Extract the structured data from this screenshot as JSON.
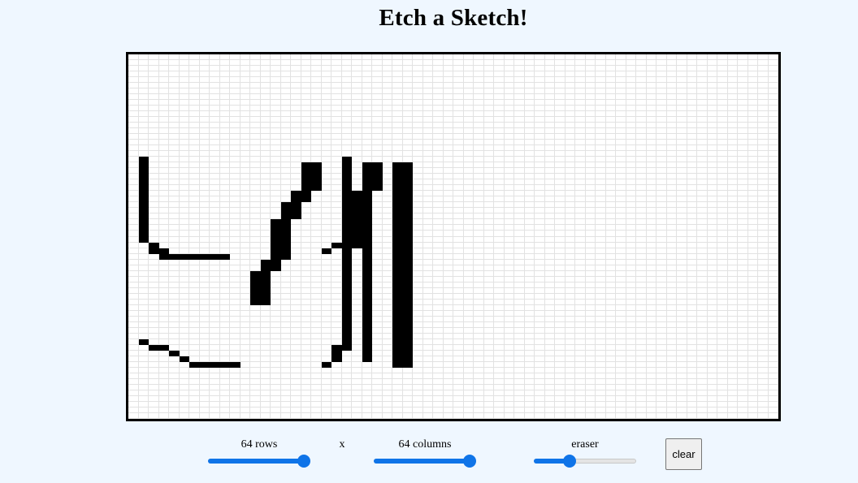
{
  "page": {
    "title": "Etch a Sketch!",
    "background_color": "#eff7ff"
  },
  "grid": {
    "rows": 64,
    "columns": 64,
    "cell_color_filled": "#000000",
    "cell_color_empty": "#ffffff",
    "gridline_color": "#e2e2e2",
    "drawing_text": "YAHYA",
    "filled_cells": [
      [
        18,
        1
      ],
      [
        18,
        21
      ],
      [
        19,
        1
      ],
      [
        19,
        21
      ],
      [
        20,
        1
      ],
      [
        20,
        21
      ],
      [
        21,
        1
      ],
      [
        21,
        21
      ],
      [
        22,
        1
      ],
      [
        22,
        21
      ],
      [
        23,
        1
      ],
      [
        23,
        21
      ],
      [
        24,
        1
      ],
      [
        24,
        21
      ],
      [
        25,
        1
      ],
      [
        25,
        21
      ],
      [
        26,
        1
      ],
      [
        26,
        21
      ],
      [
        27,
        1
      ],
      [
        27,
        21
      ],
      [
        28,
        1
      ],
      [
        28,
        21
      ],
      [
        29,
        1
      ],
      [
        29,
        21
      ],
      [
        30,
        1
      ],
      [
        30,
        21
      ],
      [
        31,
        1
      ],
      [
        31,
        21
      ],
      [
        32,
        1
      ],
      [
        32,
        21
      ],
      [
        33,
        2
      ],
      [
        33,
        20
      ],
      [
        33,
        21
      ],
      [
        34,
        2
      ],
      [
        34,
        3
      ],
      [
        34,
        19
      ],
      [
        34,
        21
      ],
      [
        35,
        3
      ],
      [
        35,
        4
      ],
      [
        35,
        5
      ],
      [
        35,
        6
      ],
      [
        35,
        7
      ],
      [
        35,
        8
      ],
      [
        35,
        9
      ],
      [
        35,
        21
      ],
      [
        36,
        21
      ],
      [
        37,
        21
      ],
      [
        38,
        21
      ],
      [
        39,
        21
      ],
      [
        40,
        21
      ],
      [
        41,
        21
      ],
      [
        42,
        21
      ],
      [
        43,
        21
      ],
      [
        44,
        21
      ],
      [
        45,
        21
      ],
      [
        46,
        21
      ],
      [
        47,
        21
      ],
      [
        48,
        21
      ],
      [
        49,
        21
      ],
      [
        50,
        1
      ],
      [
        50,
        21
      ],
      [
        51,
        2
      ],
      [
        51,
        3
      ],
      [
        51,
        20
      ],
      [
        51,
        21
      ],
      [
        52,
        4
      ],
      [
        52,
        20
      ],
      [
        53,
        5
      ],
      [
        53,
        20
      ],
      [
        54,
        6
      ],
      [
        54,
        7
      ],
      [
        54,
        8
      ],
      [
        54,
        9
      ],
      [
        54,
        10
      ],
      [
        54,
        19
      ],
      [
        19,
        17
      ],
      [
        19,
        18
      ],
      [
        20,
        17
      ],
      [
        20,
        18
      ],
      [
        21,
        17
      ],
      [
        21,
        18
      ],
      [
        22,
        17
      ],
      [
        22,
        18
      ],
      [
        23,
        17
      ],
      [
        23,
        18
      ],
      [
        24,
        16
      ],
      [
        24,
        17
      ],
      [
        25,
        16
      ],
      [
        25,
        17
      ],
      [
        26,
        15
      ],
      [
        26,
        16
      ],
      [
        27,
        15
      ],
      [
        27,
        16
      ],
      [
        28,
        15
      ],
      [
        28,
        16
      ],
      [
        29,
        14
      ],
      [
        29,
        15
      ],
      [
        30,
        14
      ],
      [
        30,
        15
      ],
      [
        31,
        14
      ],
      [
        31,
        15
      ],
      [
        32,
        14
      ],
      [
        32,
        15
      ],
      [
        33,
        14
      ],
      [
        33,
        15
      ],
      [
        34,
        14
      ],
      [
        34,
        15
      ],
      [
        35,
        14
      ],
      [
        35,
        15
      ],
      [
        36,
        13
      ],
      [
        36,
        14
      ],
      [
        37,
        13
      ],
      [
        37,
        14
      ],
      [
        38,
        12
      ],
      [
        38,
        13
      ],
      [
        39,
        12
      ],
      [
        39,
        13
      ],
      [
        40,
        12
      ],
      [
        40,
        13
      ],
      [
        41,
        12
      ],
      [
        41,
        13
      ],
      [
        42,
        12
      ],
      [
        42,
        13
      ],
      [
        43,
        12
      ],
      [
        43,
        13
      ],
      [
        19,
        23
      ],
      [
        19,
        24
      ],
      [
        20,
        23
      ],
      [
        20,
        24
      ],
      [
        21,
        23
      ],
      [
        21,
        24
      ],
      [
        22,
        23
      ],
      [
        22,
        24
      ],
      [
        23,
        23
      ],
      [
        23,
        24
      ],
      [
        24,
        22
      ],
      [
        24,
        23
      ],
      [
        25,
        22
      ],
      [
        25,
        23
      ],
      [
        26,
        22
      ],
      [
        26,
        23
      ],
      [
        27,
        22
      ],
      [
        27,
        23
      ],
      [
        28,
        22
      ],
      [
        28,
        23
      ],
      [
        29,
        22
      ],
      [
        29,
        23
      ],
      [
        30,
        22
      ],
      [
        30,
        23
      ],
      [
        31,
        22
      ],
      [
        31,
        23
      ],
      [
        32,
        22
      ],
      [
        32,
        23
      ],
      [
        33,
        22
      ],
      [
        33,
        23
      ],
      [
        34,
        23
      ],
      [
        35,
        23
      ],
      [
        36,
        23
      ],
      [
        37,
        23
      ],
      [
        38,
        23
      ],
      [
        39,
        23
      ],
      [
        40,
        23
      ],
      [
        41,
        23
      ],
      [
        42,
        23
      ],
      [
        43,
        23
      ],
      [
        44,
        23
      ],
      [
        45,
        23
      ],
      [
        46,
        23
      ],
      [
        47,
        23
      ],
      [
        48,
        23
      ],
      [
        49,
        23
      ],
      [
        50,
        23
      ],
      [
        51,
        23
      ],
      [
        52,
        23
      ],
      [
        53,
        23
      ],
      [
        19,
        26
      ],
      [
        19,
        27
      ],
      [
        20,
        26
      ],
      [
        20,
        27
      ],
      [
        21,
        26
      ],
      [
        21,
        27
      ],
      [
        22,
        26
      ],
      [
        22,
        27
      ],
      [
        23,
        26
      ],
      [
        23,
        27
      ],
      [
        24,
        26
      ],
      [
        24,
        27
      ],
      [
        25,
        26
      ],
      [
        25,
        27
      ],
      [
        26,
        26
      ],
      [
        26,
        27
      ],
      [
        27,
        26
      ],
      [
        27,
        27
      ],
      [
        28,
        26
      ],
      [
        28,
        27
      ],
      [
        29,
        26
      ],
      [
        29,
        27
      ],
      [
        30,
        26
      ],
      [
        30,
        27
      ],
      [
        31,
        26
      ],
      [
        31,
        27
      ],
      [
        32,
        26
      ],
      [
        32,
        27
      ],
      [
        33,
        26
      ],
      [
        33,
        27
      ],
      [
        34,
        26
      ],
      [
        34,
        27
      ],
      [
        35,
        26
      ],
      [
        35,
        27
      ],
      [
        36,
        26
      ],
      [
        36,
        27
      ],
      [
        37,
        26
      ],
      [
        37,
        27
      ],
      [
        38,
        26
      ],
      [
        38,
        27
      ],
      [
        39,
        26
      ],
      [
        39,
        27
      ],
      [
        40,
        26
      ],
      [
        40,
        27
      ],
      [
        41,
        26
      ],
      [
        41,
        27
      ],
      [
        42,
        26
      ],
      [
        42,
        27
      ],
      [
        43,
        26
      ],
      [
        43,
        27
      ],
      [
        44,
        26
      ],
      [
        44,
        27
      ],
      [
        45,
        26
      ],
      [
        45,
        27
      ],
      [
        46,
        26
      ],
      [
        46,
        27
      ],
      [
        47,
        26
      ],
      [
        47,
        27
      ],
      [
        48,
        26
      ],
      [
        48,
        27
      ],
      [
        49,
        26
      ],
      [
        49,
        27
      ],
      [
        50,
        26
      ],
      [
        50,
        27
      ],
      [
        51,
        26
      ],
      [
        51,
        27
      ],
      [
        52,
        26
      ],
      [
        52,
        27
      ],
      [
        53,
        26
      ],
      [
        53,
        27
      ],
      [
        54,
        26
      ],
      [
        54,
        27
      ]
    ]
  },
  "controls": {
    "rows_label": "64 rows",
    "times_symbol": "x",
    "columns_label": "64 columns",
    "eraser_label": "eraser",
    "clear_label": "clear",
    "rows_value": 64,
    "rows_max": 64,
    "columns_value": 64,
    "columns_max": 64,
    "eraser_fraction": 0.35,
    "accent_color": "#0f74e8"
  }
}
